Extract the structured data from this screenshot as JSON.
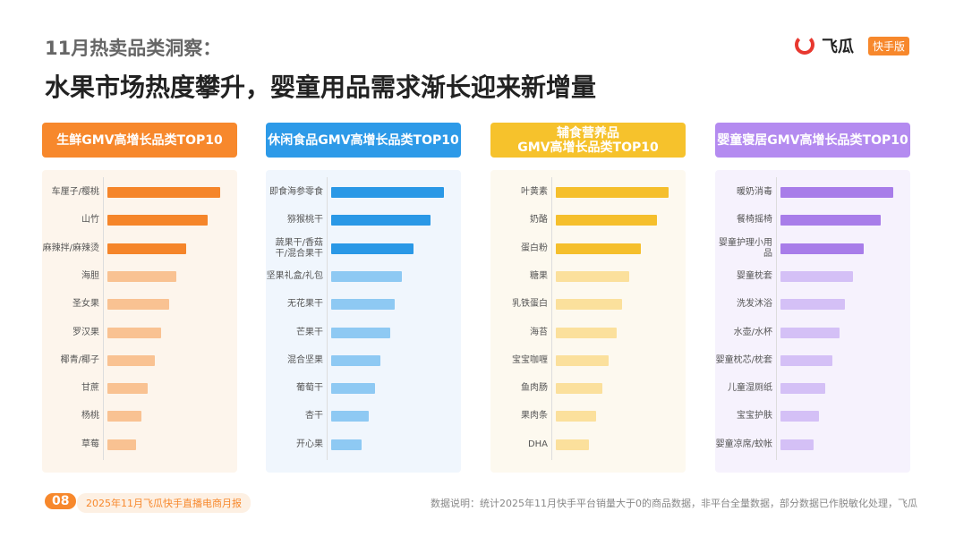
{
  "header": {
    "kicker": "11月热卖品类洞察：",
    "title": "水果市场热度攀升，婴童用品需求渐长迎来新增量",
    "logo": "飞瓜",
    "badge": "快手版"
  },
  "chart_data": [
    {
      "type": "bar",
      "title": "生鲜GMV高增长品类TOP10",
      "header_color": "#f7882c",
      "panel_color": "#fdf5ec",
      "categories": [
        "车厘子/樱桃",
        "山竹",
        "麻辣拌/麻辣烫",
        "海胆",
        "圣女果",
        "罗汉果",
        "椰青/椰子",
        "甘蔗",
        "杨桃",
        "草莓"
      ],
      "values": [
        100,
        89,
        70,
        61,
        55,
        48,
        42,
        36,
        30,
        25
      ],
      "colors": [
        "#f5852a",
        "#f5852a",
        "#f5852a",
        "#f9c292",
        "#f9c292",
        "#f9c292",
        "#f9c292",
        "#f9c292",
        "#f9c292",
        "#f9c292"
      ]
    },
    {
      "type": "bar",
      "title": "休闲食品GMV高增长品类TOP10",
      "header_color": "#2d9ae8",
      "panel_color": "#f0f6fd",
      "categories": [
        "即食海参零食",
        "猕猴桃干",
        "蔬果干/香菇干/混合果干",
        "坚果礼盒/礼包",
        "无花果干",
        "芒果干",
        "混合坚果",
        "葡萄干",
        "杏干",
        "开心果"
      ],
      "values": [
        100,
        88,
        73,
        63,
        56,
        52,
        44,
        39,
        33,
        27
      ],
      "colors": [
        "#2a98e6",
        "#2a98e6",
        "#2a98e6",
        "#8ec9f3",
        "#8ec9f3",
        "#8ec9f3",
        "#8ec9f3",
        "#8ec9f3",
        "#8ec9f3",
        "#8ec9f3"
      ]
    },
    {
      "type": "bar",
      "title": "辅食营养品\nGMV高增长品类TOP10",
      "header_color": "#f6c22c",
      "panel_color": "#fdf9ef",
      "categories": [
        "叶黄素",
        "奶酪",
        "蛋白粉",
        "糖果",
        "乳铁蛋白",
        "海苔",
        "宝宝咖喱",
        "鱼肉肠",
        "果肉条",
        "DHA"
      ],
      "values": [
        100,
        90,
        75,
        65,
        59,
        54,
        47,
        41,
        36,
        29
      ],
      "colors": [
        "#f5bf2c",
        "#f5bf2c",
        "#f5bf2c",
        "#fbe09c",
        "#fbe09c",
        "#fbe09c",
        "#fbe09c",
        "#fbe09c",
        "#fbe09c",
        "#fbe09c"
      ]
    },
    {
      "type": "bar",
      "title": "婴童寝居GMV高增长品类TOP10",
      "header_color": "#b48bf0",
      "panel_color": "#f6f2fd",
      "categories": [
        "暖奶消毒",
        "餐椅摇椅",
        "婴童护理小用品",
        "婴童枕套",
        "洗发沐浴",
        "水壶/水杯",
        "婴童枕芯/枕套",
        "儿童湿厕纸",
        "宝宝护肤",
        "婴童凉席/蚊帐"
      ],
      "values": [
        100,
        89,
        74,
        64,
        57,
        52,
        46,
        40,
        34,
        29
      ],
      "colors": [
        "#a87de9",
        "#a87de9",
        "#a87de9",
        "#d4c0f6",
        "#d4c0f6",
        "#d4c0f6",
        "#d4c0f6",
        "#d4c0f6",
        "#d4c0f6",
        "#d4c0f6"
      ]
    }
  ],
  "footer": {
    "page": "08",
    "report": "2025年11月飞瓜快手直播电商月报",
    "note": "数据说明：统计2025年11月快手平台销量大于0的商品数据，非平台全量数据，部分数据已作脱敏化处理，飞瓜"
  }
}
